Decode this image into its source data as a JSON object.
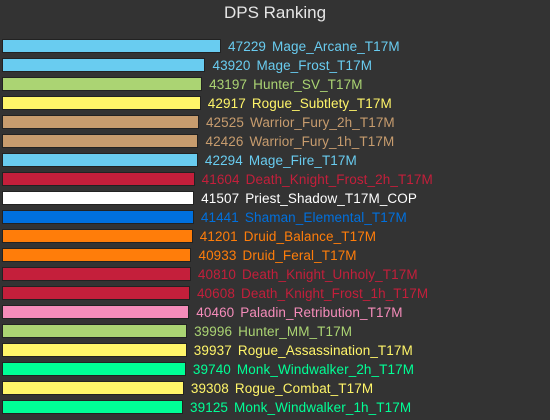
{
  "chart_data": {
    "type": "bar",
    "orientation": "horizontal",
    "title": "DPS Ranking",
    "xlim": [
      0,
      47229
    ],
    "grid": false,
    "legend": "none",
    "series": [
      {
        "name": "",
        "values": [
          47229,
          43920,
          43197,
          42917,
          42525,
          42426,
          42294,
          41604,
          41507,
          41441,
          41201,
          40933,
          40810,
          40608,
          40460,
          39996,
          39937,
          39740,
          39308,
          39125
        ]
      }
    ],
    "bars": [
      {
        "value": 47229,
        "label": "Mage_Arcane_T17M",
        "color": "#69ccf0"
      },
      {
        "value": 43920,
        "label": "Mage_Frost_T17M",
        "color": "#69ccf0"
      },
      {
        "value": 43197,
        "label": "Hunter_SV_T17M",
        "color": "#abd473"
      },
      {
        "value": 42917,
        "label": "Rogue_Subtlety_T17M",
        "color": "#fff569"
      },
      {
        "value": 42525,
        "label": "Warrior_Fury_2h_T17M",
        "color": "#c79c6e"
      },
      {
        "value": 42426,
        "label": "Warrior_Fury_1h_T17M",
        "color": "#c79c6e"
      },
      {
        "value": 42294,
        "label": "Mage_Fire_T17M",
        "color": "#69ccf0"
      },
      {
        "value": 41604,
        "label": "Death_Knight_Frost_2h_T17M",
        "color": "#c41f3b"
      },
      {
        "value": 41507,
        "label": "Priest_Shadow_T17M_COP",
        "color": "#ffffff"
      },
      {
        "value": 41441,
        "label": "Shaman_Elemental_T17M",
        "color": "#0070de"
      },
      {
        "value": 41201,
        "label": "Druid_Balance_T17M",
        "color": "#ff7d0a"
      },
      {
        "value": 40933,
        "label": "Druid_Feral_T17M",
        "color": "#ff7d0a"
      },
      {
        "value": 40810,
        "label": "Death_Knight_Unholy_T17M",
        "color": "#c41f3b"
      },
      {
        "value": 40608,
        "label": "Death_Knight_Frost_1h_T17M",
        "color": "#c41f3b"
      },
      {
        "value": 40460,
        "label": "Paladin_Retribution_T17M",
        "color": "#f58cba"
      },
      {
        "value": 39996,
        "label": "Hunter_MM_T17M",
        "color": "#abd473"
      },
      {
        "value": 39937,
        "label": "Rogue_Assassination_T17M",
        "color": "#fff569"
      },
      {
        "value": 39740,
        "label": "Monk_Windwalker_2h_T17M",
        "color": "#00ff96"
      },
      {
        "value": 39308,
        "label": "Rogue_Combat_T17M",
        "color": "#fff569"
      },
      {
        "value": 39125,
        "label": "Monk_Windwalker_1h_T17M",
        "color": "#00ff96"
      }
    ]
  }
}
